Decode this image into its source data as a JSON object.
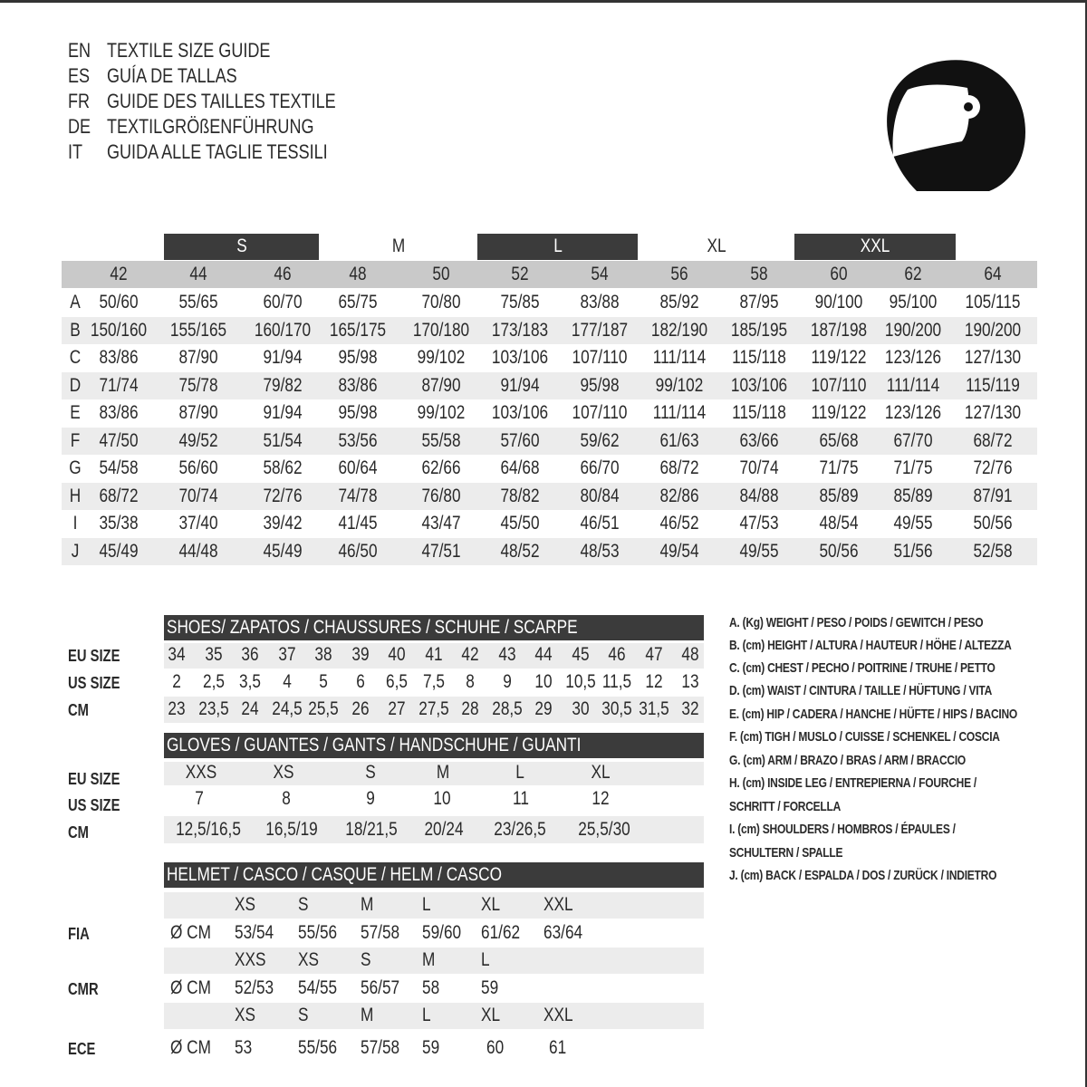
{
  "titles": [
    {
      "code": "EN",
      "text": "TEXTILE SIZE GUIDE"
    },
    {
      "code": "ES",
      "text": "GUÍA DE TALLAS"
    },
    {
      "code": "FR",
      "text": "GUIDE DES TAILLES TEXTILE"
    },
    {
      "code": "DE",
      "text": "TEXTILGRÖßENFÜHRUNG"
    },
    {
      "code": "IT",
      "text": "GUIDA ALLE TAGLIE TESSILI"
    }
  ],
  "icon": "helmet-icon",
  "colors": {
    "dark_band": "#3b3b3b",
    "size_band": "#c9c9c9",
    "stripe": "#ececec"
  },
  "textile": {
    "size_groups": [
      {
        "label": "S",
        "style": "dark"
      },
      {
        "label": "M",
        "style": "plain"
      },
      {
        "label": "L",
        "style": "dark"
      },
      {
        "label": "XL",
        "style": "plain"
      },
      {
        "label": "XXL",
        "style": "dark"
      }
    ],
    "sizes": [
      "42",
      "44",
      "46",
      "48",
      "50",
      "52",
      "54",
      "56",
      "58",
      "60",
      "62",
      "64"
    ],
    "rows": [
      {
        "key": "A",
        "values": [
          "50/60",
          "55/65",
          "60/70",
          "65/75",
          "70/80",
          "75/85",
          "83/88",
          "85/92",
          "87/95",
          "90/100",
          "95/100",
          "105/115"
        ]
      },
      {
        "key": "B",
        "values": [
          "150/160",
          "155/165",
          "160/170",
          "165/175",
          "170/180",
          "173/183",
          "177/187",
          "182/190",
          "185/195",
          "187/198",
          "190/200",
          "190/200"
        ]
      },
      {
        "key": "C",
        "values": [
          "83/86",
          "87/90",
          "91/94",
          "95/98",
          "99/102",
          "103/106",
          "107/110",
          "111/114",
          "115/118",
          "119/122",
          "123/126",
          "127/130"
        ]
      },
      {
        "key": "D",
        "values": [
          "71/74",
          "75/78",
          "79/82",
          "83/86",
          "87/90",
          "91/94",
          "95/98",
          "99/102",
          "103/106",
          "107/110",
          "111/114",
          "115/119"
        ]
      },
      {
        "key": "E",
        "values": [
          "83/86",
          "87/90",
          "91/94",
          "95/98",
          "99/102",
          "103/106",
          "107/110",
          "111/114",
          "115/118",
          "119/122",
          "123/126",
          "127/130"
        ]
      },
      {
        "key": "F",
        "values": [
          "47/50",
          "49/52",
          "51/54",
          "53/56",
          "55/58",
          "57/60",
          "59/62",
          "61/63",
          "63/66",
          "65/68",
          "67/70",
          "68/72"
        ]
      },
      {
        "key": "G",
        "values": [
          "54/58",
          "56/60",
          "58/62",
          "60/64",
          "62/66",
          "64/68",
          "66/70",
          "68/72",
          "70/74",
          "71/75",
          "71/75",
          "72/76"
        ]
      },
      {
        "key": "H",
        "values": [
          "68/72",
          "70/74",
          "72/76",
          "74/78",
          "76/80",
          "78/82",
          "80/84",
          "82/86",
          "84/88",
          "85/89",
          "85/89",
          "87/91"
        ]
      },
      {
        "key": "I",
        "values": [
          "35/38",
          "37/40",
          "39/42",
          "41/45",
          "43/47",
          "45/50",
          "46/51",
          "46/52",
          "47/53",
          "48/54",
          "49/55",
          "50/56"
        ]
      },
      {
        "key": "J",
        "values": [
          "45/49",
          "44/48",
          "45/49",
          "46/50",
          "47/51",
          "48/52",
          "48/53",
          "49/54",
          "49/55",
          "50/56",
          "51/56",
          "52/58"
        ]
      }
    ]
  },
  "shoes": {
    "title": "SHOES/ ZAPATOS / CHAUSSURES / SCHUHE / SCARPE",
    "rows": [
      {
        "label": "EU SIZE",
        "values": [
          "34",
          "35",
          "36",
          "37",
          "38",
          "39",
          "40",
          "41",
          "42",
          "43",
          "44",
          "45",
          "46",
          "47",
          "48"
        ]
      },
      {
        "label": "US SIZE",
        "values": [
          "2",
          "2,5",
          "3,5",
          "4",
          "5",
          "6",
          "6,5",
          "7,5",
          "8",
          "9",
          "10",
          "10,5",
          "11,5",
          "12",
          "13"
        ]
      },
      {
        "label": "CM",
        "values": [
          "23",
          "23,5",
          "24",
          "24,5",
          "25,5",
          "26",
          "27",
          "27,5",
          "28",
          "28,5",
          "29",
          "30",
          "30,5",
          "31,5",
          "32"
        ]
      }
    ]
  },
  "gloves": {
    "title": "GLOVES / GUANTES / GANTS / HANDSCHUHE / GUANTI",
    "rows": [
      {
        "label": "EU SIZE",
        "values": [
          "XXS",
          "XS",
          "S",
          "M",
          "L",
          "XL"
        ]
      },
      {
        "label": "US SIZE",
        "values": [
          "7",
          "8",
          "9",
          "10",
          "11",
          "12"
        ]
      },
      {
        "label": "CM",
        "values": [
          "12,5/16,5",
          "16,5/19",
          "18/21,5",
          "20/24",
          "23/26,5",
          "25,5/30"
        ]
      }
    ]
  },
  "helmet": {
    "title": "HELMET / CASCO / CASQUE / HELM / CASCO",
    "unit": "Ø CM",
    "standards": [
      {
        "label": "FIA",
        "sizes": [
          "XS",
          "S",
          "M",
          "L",
          "XL",
          "XXL"
        ],
        "values": [
          "53/54",
          "55/56",
          "57/58",
          "59/60",
          "61/62",
          "63/64"
        ]
      },
      {
        "label": "CMR",
        "sizes": [
          "XXS",
          "XS",
          "S",
          "M",
          "L"
        ],
        "values": [
          "52/53",
          "54/55",
          "56/57",
          "58",
          "59"
        ]
      },
      {
        "label": "ECE",
        "sizes": [
          "XS",
          "S",
          "M",
          "L",
          "XL",
          "XXL"
        ],
        "values": [
          "53",
          "55/56",
          "57/58",
          "59",
          "60",
          "61"
        ]
      }
    ]
  },
  "legend": [
    "A. (Kg) WEIGHT / PESO / POIDS / GEWITCH / PESO",
    "B. (cm) HEIGHT / ALTURA / HAUTEUR / HÖHE / ALTEZZA",
    "C. (cm) CHEST / PECHO / POITRINE / TRUHE / PETTO",
    "D. (cm) WAIST / CINTURA / TAILLE / HÜFTUNG / VITA",
    "E. (cm) HIP / CADERA / HANCHE / HÜFTE / HIPS /  BACINO",
    "F.  (cm) TIGH / MUSLO / CUISSE / SCHENKEL / COSCIA",
    "G. (cm) ARM  / BRAZO / BRAS / ARM / BRACCIO",
    "H. (cm) INSIDE LEG / ENTREPIERNA / FOURCHE /",
    "SCHRITT / FORCELLA",
    "I.  (cm) SHOULDERS / HOMBROS / ÉPAULES /",
    "SCHULTERN / SPALLE",
    "J. (cm) BACK / ESPALDA / DOS / ZURÜCK / INDIETRO"
  ]
}
